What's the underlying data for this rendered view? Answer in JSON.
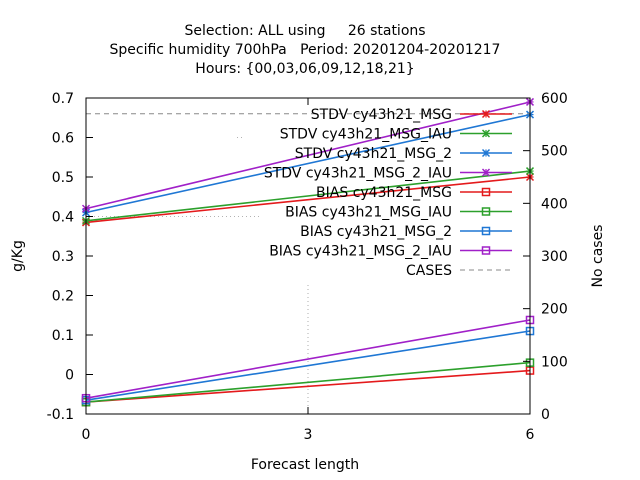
{
  "chart_data": {
    "type": "line",
    "title_lines": [
      "Selection: ALL using     26 stations",
      "Specific humidity 700hPa   Period: 20201204-20201217",
      "Hours: {00,03,06,09,12,18,21}"
    ],
    "xlabel": "Forecast length",
    "ylabel": "g/Kg",
    "y2label": "No cases",
    "x": [
      0,
      6
    ],
    "x_ticks": [
      "0",
      "3",
      "6"
    ],
    "xlim": [
      0,
      6
    ],
    "ylim": [
      -0.1,
      0.7
    ],
    "y_ticks": [
      "-0.1",
      "0",
      "0.1",
      "0.2",
      "0.3",
      "0.4",
      "0.5",
      "0.6",
      "0.7"
    ],
    "y2lim": [
      0,
      600
    ],
    "y2_ticks": [
      "0",
      "100",
      "200",
      "300",
      "400",
      "500",
      "600"
    ],
    "grid": true,
    "legend_position": "top-right",
    "series": [
      {
        "name": "STDV cy43h21_MSG",
        "values": [
          0.385,
          0.5
        ],
        "color": "#e41a1c",
        "marker": "x",
        "axis": "y"
      },
      {
        "name": "STDV cy43h21_MSG_IAU",
        "values": [
          0.389,
          0.515
        ],
        "color": "#2ca02c",
        "marker": "x",
        "axis": "y"
      },
      {
        "name": "STDV cy43h21_MSG_2",
        "values": [
          0.41,
          0.658
        ],
        "color": "#1f77d4",
        "marker": "x",
        "axis": "y"
      },
      {
        "name": "STDV cy43h21_MSG_2_IAU",
        "values": [
          0.42,
          0.69
        ],
        "color": "#a020c8",
        "marker": "x",
        "axis": "y"
      },
      {
        "name": "BIAS cy43h21_MSG",
        "values": [
          -0.07,
          0.01
        ],
        "color": "#e41a1c",
        "marker": "square",
        "axis": "y"
      },
      {
        "name": "BIAS cy43h21_MSG_IAU",
        "values": [
          -0.07,
          0.03
        ],
        "color": "#2ca02c",
        "marker": "square",
        "axis": "y"
      },
      {
        "name": "BIAS cy43h21_MSG_2",
        "values": [
          -0.065,
          0.11
        ],
        "color": "#1f77d4",
        "marker": "square",
        "axis": "y"
      },
      {
        "name": "BIAS cy43h21_MSG_2_IAU",
        "values": [
          -0.06,
          0.138
        ],
        "color": "#a020c8",
        "marker": "square",
        "axis": "y"
      },
      {
        "name": "CASES",
        "values": [
          570,
          570
        ],
        "color": "#888888",
        "marker": "none",
        "dashed": true,
        "axis": "y2"
      }
    ]
  }
}
